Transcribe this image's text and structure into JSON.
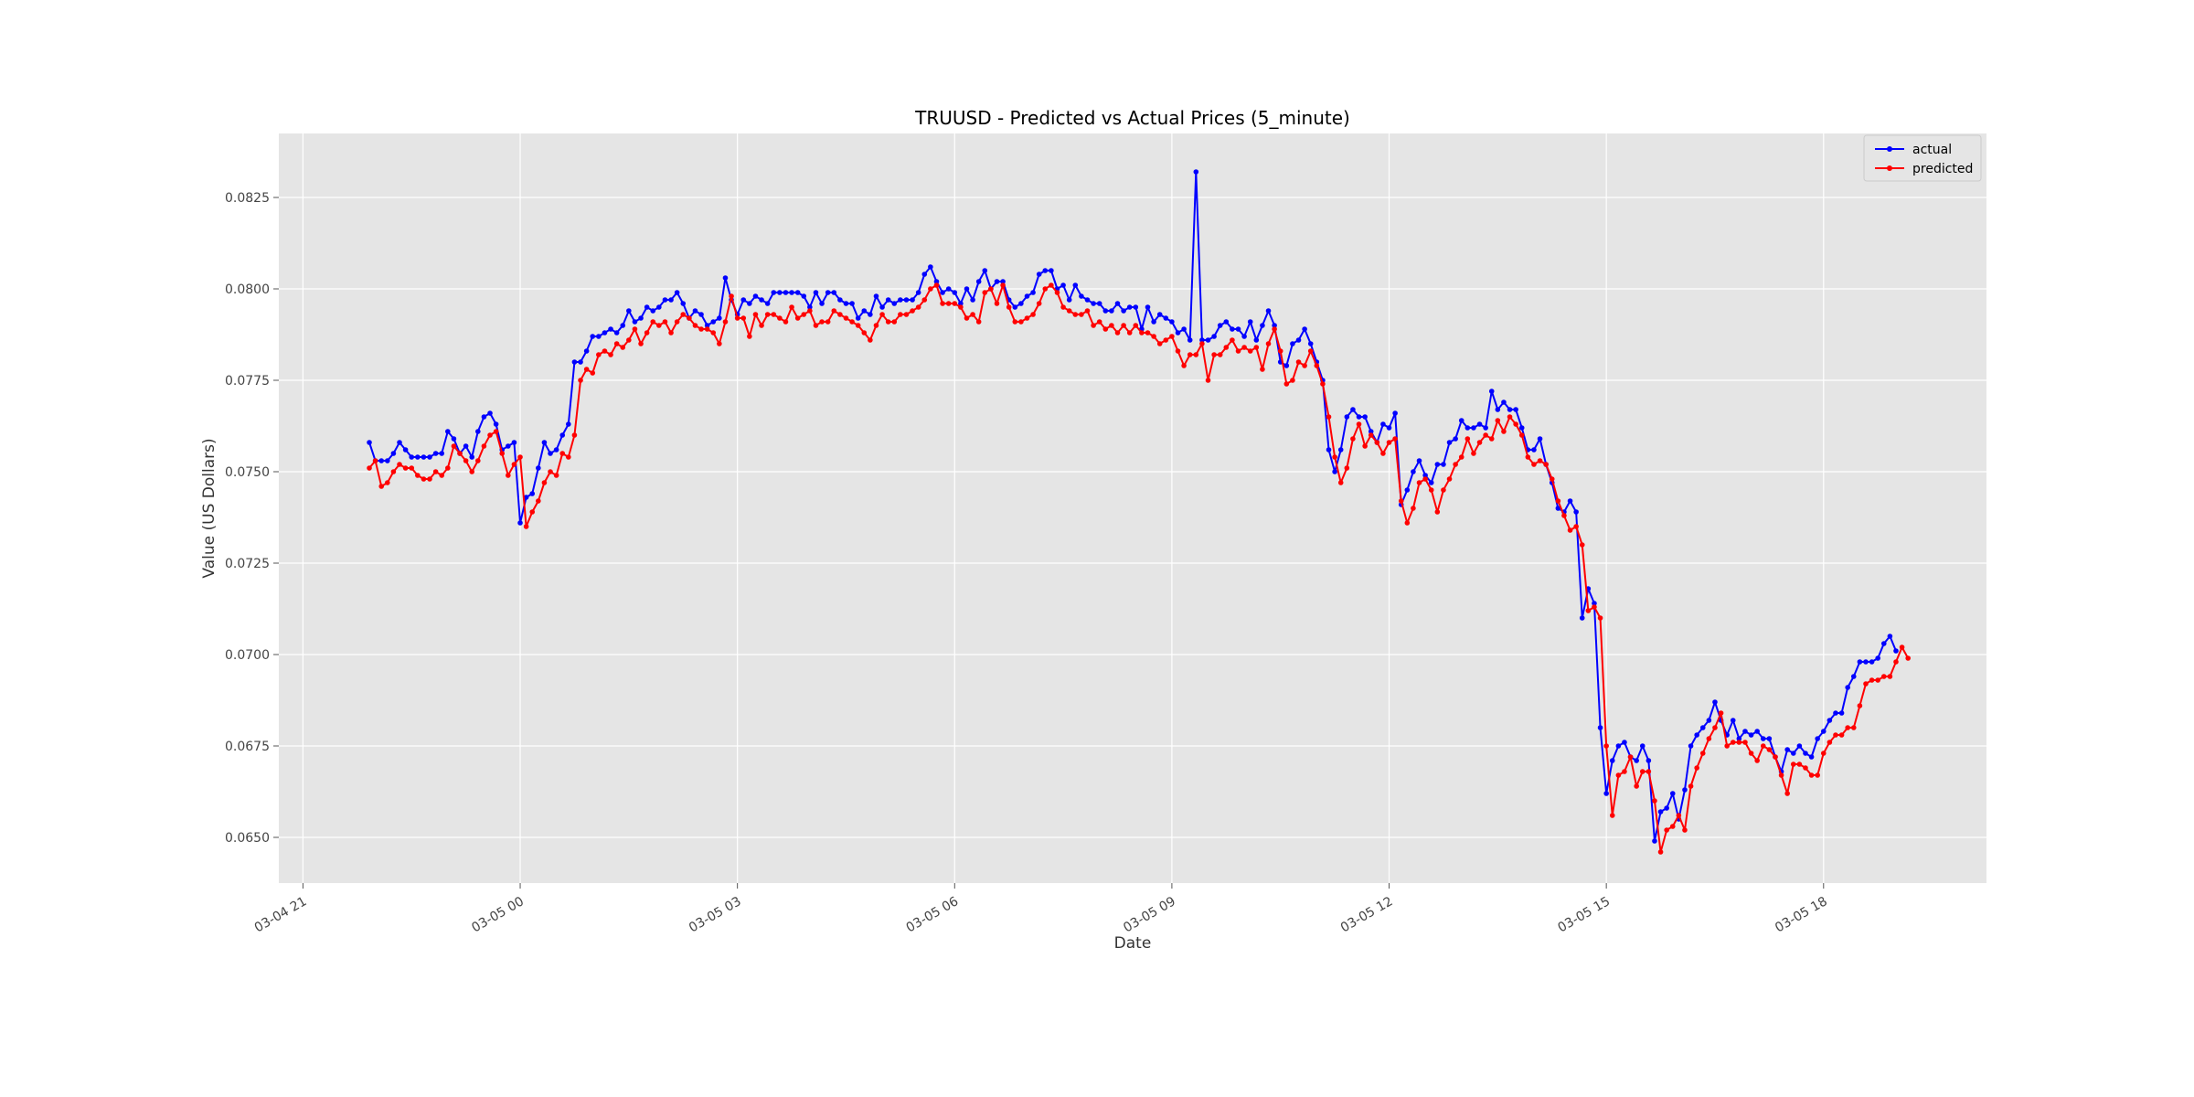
{
  "chart_data": {
    "type": "line",
    "title": "TRUUSD - Predicted vs Actual Prices (5_minute)",
    "xlabel": "Date",
    "ylabel": "Value (US Dollars)",
    "xlim": [
      "2024-03-04 20:40",
      "2024-03-05 20:15"
    ],
    "ylim": [
      0.06375,
      0.08425
    ],
    "x_ticks": [
      {
        "value": "2024-03-04 21:00",
        "label": "03-04 21"
      },
      {
        "value": "2024-03-05 00:00",
        "label": "03-05 00"
      },
      {
        "value": "2024-03-05 03:00",
        "label": "03-05 03"
      },
      {
        "value": "2024-03-05 06:00",
        "label": "03-05 06"
      },
      {
        "value": "2024-03-05 09:00",
        "label": "03-05 09"
      },
      {
        "value": "2024-03-05 12:00",
        "label": "03-05 12"
      },
      {
        "value": "2024-03-05 15:00",
        "label": "03-05 15"
      },
      {
        "value": "2024-03-05 18:00",
        "label": "03-05 18"
      }
    ],
    "y_ticks": [
      {
        "value": 0.065,
        "label": "0.0650"
      },
      {
        "value": 0.0675,
        "label": "0.0675"
      },
      {
        "value": 0.07,
        "label": "0.0700"
      },
      {
        "value": 0.0725,
        "label": "0.0725"
      },
      {
        "value": 0.075,
        "label": "0.0750"
      },
      {
        "value": 0.0775,
        "label": "0.0775"
      },
      {
        "value": 0.08,
        "label": "0.0800"
      },
      {
        "value": 0.0825,
        "label": "0.0825"
      }
    ],
    "x_start": "2024-03-04 21:55",
    "x_step_minutes": 5,
    "grid": true,
    "legend_position": "top-right",
    "series": [
      {
        "name": "actual",
        "color": "#0000ff",
        "values": [
          0.0758,
          0.0753,
          0.0753,
          0.0753,
          0.0755,
          0.0758,
          0.0756,
          0.0754,
          0.0754,
          0.0754,
          0.0754,
          0.0755,
          0.0755,
          0.0761,
          0.0759,
          0.0755,
          0.0757,
          0.0754,
          0.0761,
          0.0765,
          0.0766,
          0.0763,
          0.0756,
          0.0757,
          0.0758,
          0.0736,
          0.0743,
          0.0744,
          0.0751,
          0.0758,
          0.0755,
          0.0756,
          0.076,
          0.0763,
          0.078,
          0.078,
          0.0783,
          0.0787,
          0.0787,
          0.0788,
          0.0789,
          0.0788,
          0.079,
          0.0794,
          0.0791,
          0.0792,
          0.0795,
          0.0794,
          0.0795,
          0.0797,
          0.0797,
          0.0799,
          0.0796,
          0.0792,
          0.0794,
          0.0793,
          0.079,
          0.0791,
          0.0792,
          0.0803,
          0.0797,
          0.0793,
          0.0797,
          0.0796,
          0.0798,
          0.0797,
          0.0796,
          0.0799,
          0.0799,
          0.0799,
          0.0799,
          0.0799,
          0.0798,
          0.0795,
          0.0799,
          0.0796,
          0.0799,
          0.0799,
          0.0797,
          0.0796,
          0.0796,
          0.0792,
          0.0794,
          0.0793,
          0.0798,
          0.0795,
          0.0797,
          0.0796,
          0.0797,
          0.0797,
          0.0797,
          0.0799,
          0.0804,
          0.0806,
          0.0802,
          0.0799,
          0.08,
          0.0799,
          0.0796,
          0.08,
          0.0797,
          0.0802,
          0.0805,
          0.08,
          0.0802,
          0.0802,
          0.0797,
          0.0795,
          0.0796,
          0.0798,
          0.0799,
          0.0804,
          0.0805,
          0.0805,
          0.08,
          0.0801,
          0.0797,
          0.0801,
          0.0798,
          0.0797,
          0.0796,
          0.0796,
          0.0794,
          0.0794,
          0.0796,
          0.0794,
          0.0795,
          0.0795,
          0.0789,
          0.0795,
          0.0791,
          0.0793,
          0.0792,
          0.0791,
          0.0788,
          0.0789,
          0.0786,
          0.0832,
          0.0786,
          0.0786,
          0.0787,
          0.079,
          0.0791,
          0.0789,
          0.0789,
          0.0787,
          0.0791,
          0.0786,
          0.079,
          0.0794,
          0.079,
          0.078,
          0.0779,
          0.0785,
          0.0786,
          0.0789,
          0.0785,
          0.078,
          0.0775,
          0.0756,
          0.075,
          0.0756,
          0.0765,
          0.0767,
          0.0765,
          0.0765,
          0.0761,
          0.0758,
          0.0763,
          0.0762,
          0.0766,
          0.0741,
          0.0745,
          0.075,
          0.0753,
          0.0749,
          0.0747,
          0.0752,
          0.0752,
          0.0758,
          0.0759,
          0.0764,
          0.0762,
          0.0762,
          0.0763,
          0.0762,
          0.0772,
          0.0767,
          0.0769,
          0.0767,
          0.0767,
          0.0762,
          0.0756,
          0.0756,
          0.0759,
          0.0752,
          0.0747,
          0.074,
          0.0739,
          0.0742,
          0.0739,
          0.071,
          0.0718,
          0.0714,
          0.068,
          0.0662,
          0.0671,
          0.0675,
          0.0676,
          0.0672,
          0.0671,
          0.0675,
          0.0671,
          0.0649,
          0.0657,
          0.0658,
          0.0662,
          0.0655,
          0.0663,
          0.0675,
          0.0678,
          0.068,
          0.0682,
          0.0687,
          0.0682,
          0.0678,
          0.0682,
          0.0677,
          0.0679,
          0.0678,
          0.0679,
          0.0677,
          0.0677,
          0.0672,
          0.0668,
          0.0674,
          0.0673,
          0.0675,
          0.0673,
          0.0672,
          0.0677,
          0.0679,
          0.0682,
          0.0684,
          0.0684,
          0.0691,
          0.0694,
          0.0698,
          0.0698,
          0.0698,
          0.0699,
          0.0703,
          0.0705,
          0.0701
        ]
      },
      {
        "name": "predicted",
        "color": "#ff0000",
        "values": [
          0.0751,
          0.0753,
          0.0746,
          0.0747,
          0.075,
          0.0752,
          0.0751,
          0.0751,
          0.0749,
          0.0748,
          0.0748,
          0.075,
          0.0749,
          0.0751,
          0.0757,
          0.0755,
          0.0753,
          0.075,
          0.0753,
          0.0757,
          0.076,
          0.0761,
          0.0755,
          0.0749,
          0.0752,
          0.0754,
          0.0735,
          0.0739,
          0.0742,
          0.0747,
          0.075,
          0.0749,
          0.0755,
          0.0754,
          0.076,
          0.0775,
          0.0778,
          0.0777,
          0.0782,
          0.0783,
          0.0782,
          0.0785,
          0.0784,
          0.0786,
          0.0789,
          0.0785,
          0.0788,
          0.0791,
          0.079,
          0.0791,
          0.0788,
          0.0791,
          0.0793,
          0.0792,
          0.079,
          0.0789,
          0.0789,
          0.0788,
          0.0785,
          0.0791,
          0.0798,
          0.0792,
          0.0792,
          0.0787,
          0.0793,
          0.079,
          0.0793,
          0.0793,
          0.0792,
          0.0791,
          0.0795,
          0.0792,
          0.0793,
          0.0794,
          0.079,
          0.0791,
          0.0791,
          0.0794,
          0.0793,
          0.0792,
          0.0791,
          0.079,
          0.0788,
          0.0786,
          0.079,
          0.0793,
          0.0791,
          0.0791,
          0.0793,
          0.0793,
          0.0794,
          0.0795,
          0.0797,
          0.08,
          0.0801,
          0.0796,
          0.0796,
          0.0796,
          0.0795,
          0.0792,
          0.0793,
          0.0791,
          0.0799,
          0.08,
          0.0796,
          0.0801,
          0.0795,
          0.0791,
          0.0791,
          0.0792,
          0.0793,
          0.0796,
          0.08,
          0.0801,
          0.0799,
          0.0795,
          0.0794,
          0.0793,
          0.0793,
          0.0794,
          0.079,
          0.0791,
          0.0789,
          0.079,
          0.0788,
          0.079,
          0.0788,
          0.079,
          0.0788,
          0.0788,
          0.0787,
          0.0785,
          0.0786,
          0.0787,
          0.0783,
          0.0779,
          0.0782,
          0.0782,
          0.0785,
          0.0775,
          0.0782,
          0.0782,
          0.0784,
          0.0786,
          0.0783,
          0.0784,
          0.0783,
          0.0784,
          0.0778,
          0.0785,
          0.0789,
          0.0783,
          0.0774,
          0.0775,
          0.078,
          0.0779,
          0.0783,
          0.0779,
          0.0774,
          0.0765,
          0.0754,
          0.0747,
          0.0751,
          0.0759,
          0.0763,
          0.0757,
          0.076,
          0.0758,
          0.0755,
          0.0758,
          0.0759,
          0.0742,
          0.0736,
          0.074,
          0.0747,
          0.0748,
          0.0745,
          0.0739,
          0.0745,
          0.0748,
          0.0752,
          0.0754,
          0.0759,
          0.0755,
          0.0758,
          0.076,
          0.0759,
          0.0764,
          0.0761,
          0.0765,
          0.0763,
          0.076,
          0.0754,
          0.0752,
          0.0753,
          0.0752,
          0.0748,
          0.0742,
          0.0738,
          0.0734,
          0.0735,
          0.073,
          0.0712,
          0.0713,
          0.071,
          0.0675,
          0.0656,
          0.0667,
          0.0668,
          0.0672,
          0.0664,
          0.0668,
          0.0668,
          0.066,
          0.0646,
          0.0652,
          0.0653,
          0.0656,
          0.0652,
          0.0664,
          0.0669,
          0.0673,
          0.0677,
          0.068,
          0.0684,
          0.0675,
          0.0676,
          0.0676,
          0.0676,
          0.0673,
          0.0671,
          0.0675,
          0.0674,
          0.0672,
          0.0667,
          0.0662,
          0.067,
          0.067,
          0.0669,
          0.0667,
          0.0667,
          0.0673,
          0.0676,
          0.0678,
          0.0678,
          0.068,
          0.068,
          0.0686,
          0.0692,
          0.0693,
          0.0693,
          0.0694,
          0.0694,
          0.0698,
          0.0702,
          0.0699
        ]
      }
    ]
  }
}
